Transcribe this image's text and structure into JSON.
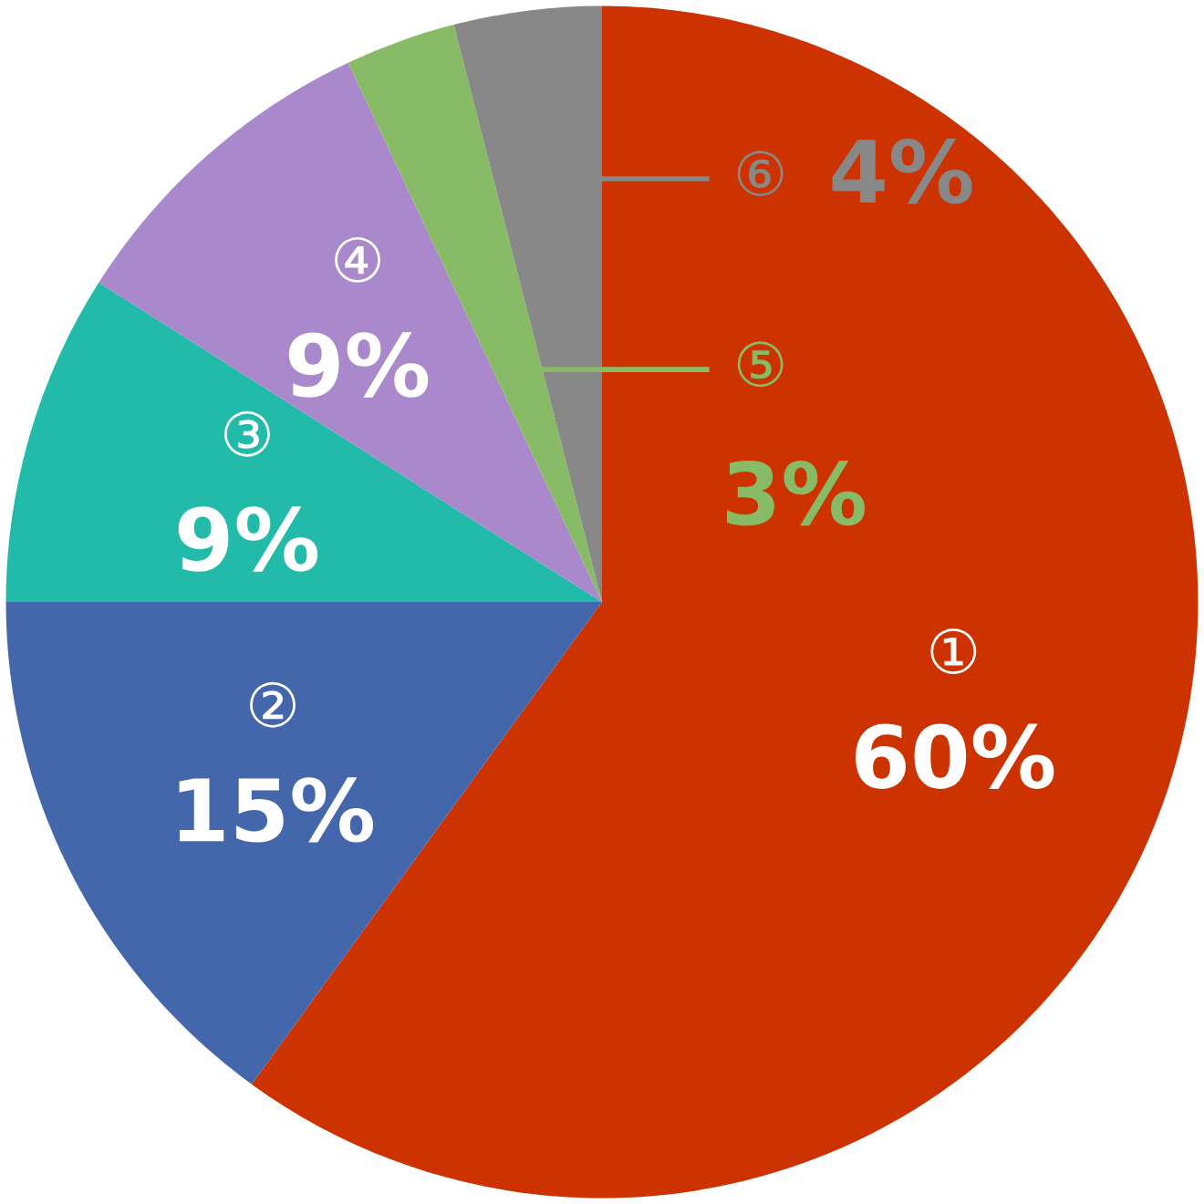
{
  "chart_data": {
    "type": "pie",
    "categories": [
      "①",
      "②",
      "③",
      "④",
      "⑤",
      "⑥"
    ],
    "values": [
      60,
      15,
      9,
      9,
      3,
      4
    ],
    "colors": [
      "#cc3300",
      "#4466aa",
      "#22bbaa",
      "#aa88cc",
      "#88bb66",
      "#888888"
    ],
    "value_labels": [
      "60%",
      "15%",
      "9%",
      "9%",
      "3%",
      "4%"
    ]
  }
}
